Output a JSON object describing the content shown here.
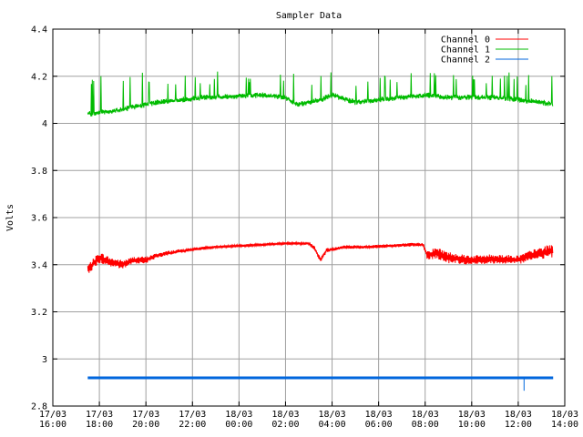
{
  "chart_data": {
    "type": "line",
    "title": "Sampler Data",
    "ylabel": "Volts",
    "xlabel": "",
    "ylim": [
      2.8,
      4.4
    ],
    "yticks": [
      "2.8",
      "3",
      "3.2",
      "3.4",
      "3.6",
      "3.8",
      "4",
      "4.2",
      "4.4"
    ],
    "xticks": [
      {
        "date": "17/03",
        "time": "16:00"
      },
      {
        "date": "17/03",
        "time": "18:00"
      },
      {
        "date": "17/03",
        "time": "20:00"
      },
      {
        "date": "17/03",
        "time": "22:00"
      },
      {
        "date": "18/03",
        "time": "00:00"
      },
      {
        "date": "18/03",
        "time": "02:00"
      },
      {
        "date": "18/03",
        "time": "04:00"
      },
      {
        "date": "18/03",
        "time": "06:00"
      },
      {
        "date": "18/03",
        "time": "08:00"
      },
      {
        "date": "18/03",
        "time": "10:00"
      },
      {
        "date": "18/03",
        "time": "12:00"
      },
      {
        "date": "18/03",
        "time": "14:00"
      }
    ],
    "grid": true,
    "legend_position": "top-right",
    "series": [
      {
        "name": "Channel 0",
        "color": "#ff0000",
        "x": [
          "17/03 17:30",
          "17/03 18:00",
          "17/03 18:30",
          "17/03 19:00",
          "17/03 19:30",
          "17/03 20:00",
          "17/03 20:30",
          "17/03 21:00",
          "17/03 22:00",
          "17/03 23:00",
          "18/03 00:00",
          "18/03 01:00",
          "18/03 02:00",
          "18/03 03:00",
          "18/03 03:15",
          "18/03 03:30",
          "18/03 03:45",
          "18/03 04:30",
          "18/03 05:30",
          "18/03 06:30",
          "18/03 07:30",
          "18/03 07:55",
          "18/03 08:05",
          "18/03 08:30",
          "18/03 09:00",
          "18/03 10:00",
          "18/03 11:00",
          "18/03 12:00",
          "18/03 12:30",
          "18/03 13:00",
          "18/03 13:30"
        ],
        "values": [
          3.38,
          3.43,
          3.41,
          3.4,
          3.42,
          3.42,
          3.44,
          3.45,
          3.465,
          3.475,
          3.48,
          3.485,
          3.49,
          3.49,
          3.47,
          3.42,
          3.46,
          3.475,
          3.475,
          3.48,
          3.485,
          3.485,
          3.44,
          3.45,
          3.43,
          3.42,
          3.425,
          3.42,
          3.44,
          3.45,
          3.46
        ],
        "range": [
          0.04,
          0.05,
          0.04,
          0.04,
          0.03,
          0.03,
          0.02,
          0.02,
          0.015,
          0.01,
          0.01,
          0.01,
          0.01,
          0.01,
          0.02,
          0.02,
          0.02,
          0.015,
          0.015,
          0.015,
          0.015,
          0.015,
          0.04,
          0.05,
          0.05,
          0.04,
          0.04,
          0.04,
          0.04,
          0.05,
          0.06
        ]
      },
      {
        "name": "Channel 1",
        "color": "#00bb00",
        "x": [
          "17/03 17:30",
          "17/03 18:30",
          "17/03 19:30",
          "17/03 20:30",
          "17/03 21:30",
          "17/03 22:30",
          "18/03 00:00",
          "18/03 01:00",
          "18/03 02:00",
          "18/03 02:30",
          "18/03 03:00",
          "18/03 03:30",
          "18/03 04:00",
          "18/03 05:00",
          "18/03 06:00",
          "18/03 07:00",
          "18/03 08:00",
          "18/03 09:00",
          "18/03 10:00",
          "18/03 11:00",
          "18/03 12:00",
          "18/03 13:00",
          "18/03 13:30"
        ],
        "values": [
          4.04,
          4.05,
          4.07,
          4.09,
          4.1,
          4.11,
          4.115,
          4.12,
          4.11,
          4.08,
          4.09,
          4.1,
          4.12,
          4.09,
          4.1,
          4.11,
          4.12,
          4.11,
          4.11,
          4.11,
          4.1,
          4.09,
          4.08
        ],
        "spikes_to": 4.22
      },
      {
        "name": "Channel 2",
        "color": "#0066dd",
        "x": [
          "17/03 17:30",
          "18/03 13:30"
        ],
        "values": [
          2.92,
          2.92
        ],
        "dip": {
          "x": "18/03 12:15",
          "value": 2.865
        }
      }
    ]
  }
}
